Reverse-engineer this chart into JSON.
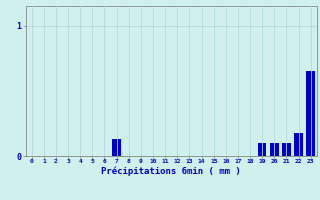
{
  "bar_color": "#0000cc",
  "background_color": "#d0f0ee",
  "grid_color": "#b0d8d8",
  "axis_color": "#888888",
  "xlabel": "Précipitations 6min ( mm )",
  "xlabel_color": "#0000cc",
  "ylim": [
    0,
    1.15
  ],
  "xlim": [
    -0.5,
    23.5
  ],
  "tick_color": "#0000cc",
  "bar_width": 0.7,
  "bar_values": [
    0,
    0,
    0,
    0,
    0,
    0,
    0,
    0.13,
    0,
    0,
    0,
    0,
    0,
    0,
    0,
    0,
    0,
    0,
    0,
    0.1,
    0.1,
    0.1,
    0.18,
    0.65
  ],
  "yticks": [
    0,
    1
  ],
  "ytick_labels": [
    "0",
    "1"
  ],
  "xtick_labels": [
    "0",
    "1",
    "2",
    "3",
    "4",
    "5",
    "6",
    "7",
    "8",
    "9",
    "10",
    "11",
    "12",
    "13",
    "14",
    "15",
    "16",
    "17",
    "18",
    "19",
    "20",
    "21",
    "22",
    "23"
  ]
}
